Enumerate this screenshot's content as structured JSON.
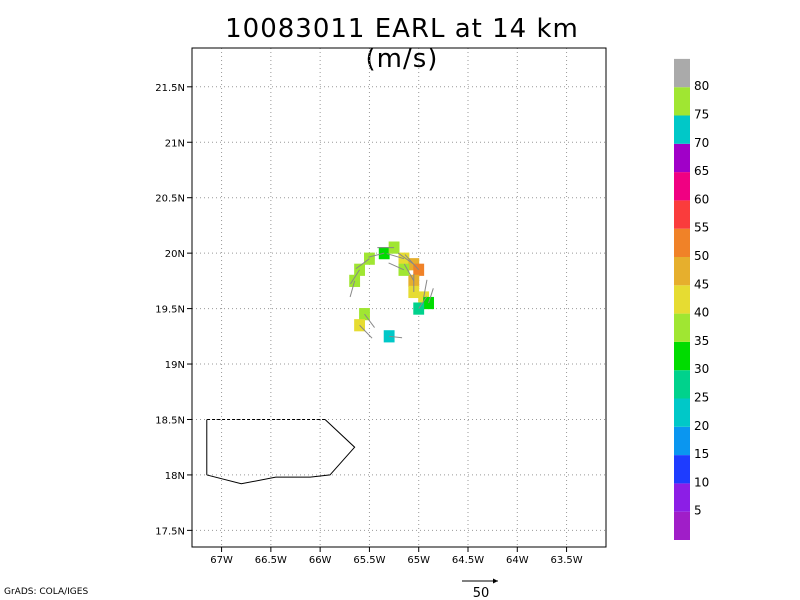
{
  "title": "10083011 EARL at 14 km (m/s)",
  "credit": "GrADS: COLA/IGES",
  "map": {
    "lon_range": [
      -67.3,
      -63.1
    ],
    "lat_range": [
      17.35,
      21.85
    ],
    "lon_ticks": [
      {
        "value": -67.0,
        "label": "67W"
      },
      {
        "value": -66.5,
        "label": "66.5W"
      },
      {
        "value": -66.0,
        "label": "66W"
      },
      {
        "value": -65.5,
        "label": "65.5W"
      },
      {
        "value": -65.0,
        "label": "65W"
      },
      {
        "value": -64.5,
        "label": "64.5W"
      },
      {
        "value": -64.0,
        "label": "64W"
      },
      {
        "value": -63.5,
        "label": "63.5W"
      }
    ],
    "lat_ticks": [
      {
        "value": 17.5,
        "label": "17.5N"
      },
      {
        "value": 18.0,
        "label": "18N"
      },
      {
        "value": 18.5,
        "label": "18.5N"
      },
      {
        "value": 19.0,
        "label": "19N"
      },
      {
        "value": 19.5,
        "label": "19.5N"
      },
      {
        "value": 20.0,
        "label": "20N"
      },
      {
        "value": 20.5,
        "label": "20.5N"
      },
      {
        "value": 21.0,
        "label": "21N"
      },
      {
        "value": 21.5,
        "label": "21.5N"
      }
    ],
    "coastline": [
      [
        -67.15,
        18.0
      ],
      [
        -66.8,
        17.92
      ],
      [
        -66.45,
        17.98
      ],
      [
        -66.1,
        17.98
      ],
      [
        -65.9,
        18.0
      ],
      [
        -65.65,
        18.25
      ],
      [
        -65.95,
        18.5
      ],
      [
        -67.15,
        18.5
      ]
    ],
    "coastline_dashed_segment": [
      [
        -65.95,
        18.5
      ],
      [
        -67.15,
        18.5
      ]
    ]
  },
  "wind_cells": [
    {
      "lon": -65.6,
      "lat": 19.85,
      "speed": 35
    },
    {
      "lon": -65.5,
      "lat": 19.95,
      "speed": 35
    },
    {
      "lon": -65.35,
      "lat": 20.0,
      "speed": 33
    },
    {
      "lon": -65.25,
      "lat": 20.05,
      "speed": 35
    },
    {
      "lon": -65.15,
      "lat": 19.95,
      "speed": 40
    },
    {
      "lon": -65.05,
      "lat": 19.9,
      "speed": 45
    },
    {
      "lon": -65.0,
      "lat": 19.85,
      "speed": 50
    },
    {
      "lon": -65.05,
      "lat": 19.75,
      "speed": 45
    },
    {
      "lon": -65.05,
      "lat": 19.65,
      "speed": 40
    },
    {
      "lon": -64.95,
      "lat": 19.6,
      "speed": 40
    },
    {
      "lon": -64.9,
      "lat": 19.55,
      "speed": 30
    },
    {
      "lon": -65.0,
      "lat": 19.5,
      "speed": 25
    },
    {
      "lon": -65.55,
      "lat": 19.45,
      "speed": 35
    },
    {
      "lon": -65.6,
      "lat": 19.35,
      "speed": 40
    },
    {
      "lon": -65.3,
      "lat": 19.25,
      "speed": 20
    },
    {
      "lon": -65.65,
      "lat": 19.75,
      "speed": 35
    },
    {
      "lon": -65.15,
      "lat": 19.85,
      "speed": 35
    }
  ],
  "colorbar": {
    "levels": [
      {
        "color": "#a01ec8",
        "label": "5"
      },
      {
        "color": "#8c1ee6",
        "label": "10"
      },
      {
        "color": "#1e3cff",
        "label": "15"
      },
      {
        "color": "#0a96f0",
        "label": "20"
      },
      {
        "color": "#00c8c8",
        "label": "25"
      },
      {
        "color": "#00d28c",
        "label": "30"
      },
      {
        "color": "#00dc00",
        "label": "35"
      },
      {
        "color": "#a0e632",
        "label": "40"
      },
      {
        "color": "#e6dc32",
        "label": "45"
      },
      {
        "color": "#e6af2d",
        "label": "50"
      },
      {
        "color": "#f08228",
        "label": "55"
      },
      {
        "color": "#fa3c3c",
        "label": "60"
      },
      {
        "color": "#f00082",
        "label": "65"
      },
      {
        "color": "#a000c8",
        "label": "70"
      },
      {
        "color": "#00c8c8",
        "label": "75"
      },
      {
        "color": "#a0e632",
        "label": "80"
      },
      {
        "color": "#aaaaaa",
        "label": ""
      }
    ]
  },
  "reference_vector": {
    "label": "50",
    "speed": 50
  }
}
